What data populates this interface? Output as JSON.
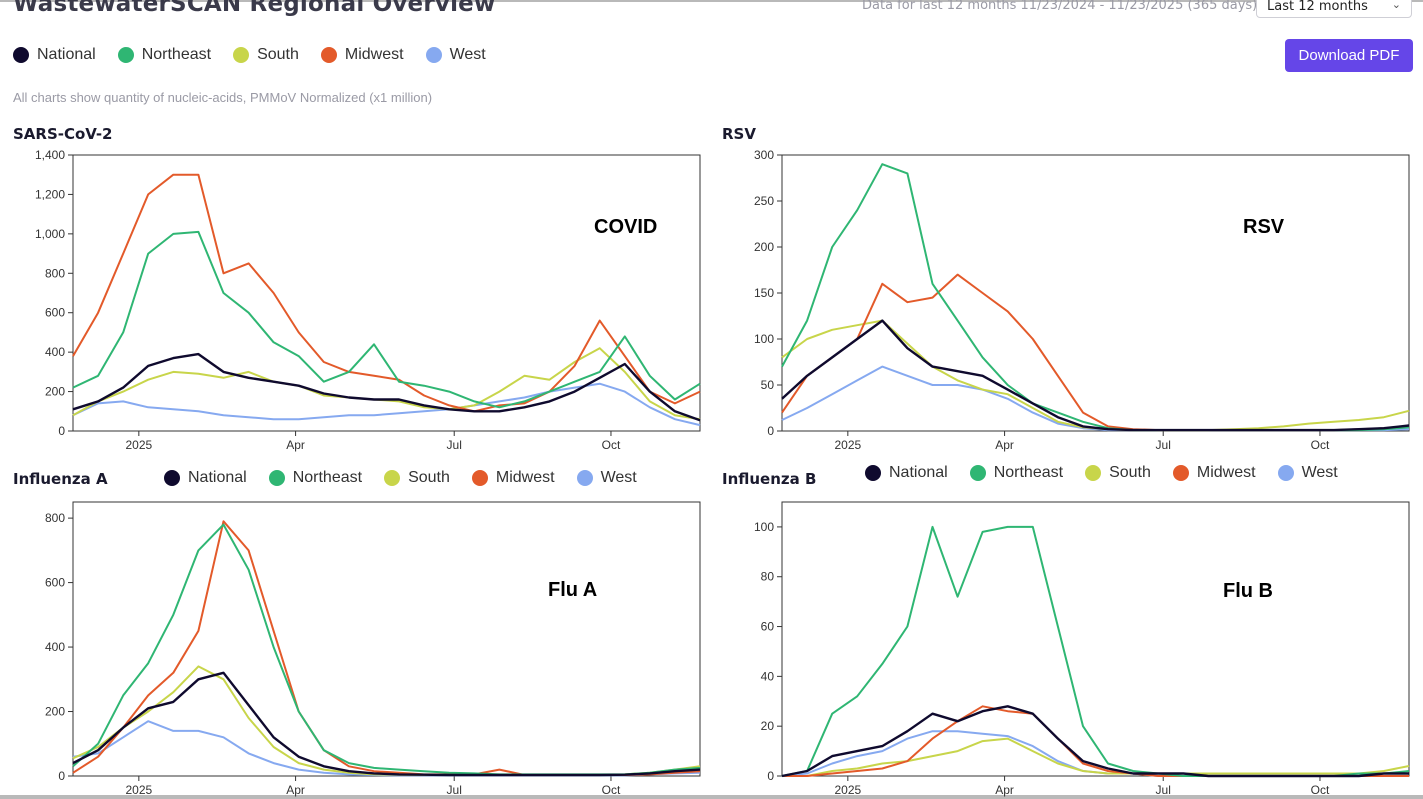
{
  "header": {
    "title": "WastewaterSCAN Regional Overview",
    "date_range": "Data for last 12 months 11/23/2024 - 11/23/2025 (365 days)",
    "range_select": "Last 12 months",
    "download_label": "Download PDF",
    "subtitle": "All charts show quantity of nucleic-acids, PMMoV Normalized (x1 million)"
  },
  "legend": [
    {
      "name": "National",
      "color": "#0f0a2e"
    },
    {
      "name": "Northeast",
      "color": "#2fb673"
    },
    {
      "name": "South",
      "color": "#c8d54a"
    },
    {
      "name": "Midwest",
      "color": "#e35a2a"
    },
    {
      "name": "West",
      "color": "#86a9f0"
    }
  ],
  "chart_data": [
    {
      "type": "line",
      "title": "SARS-CoV-2",
      "annotation": "COVID",
      "x_ticks": [
        "2025",
        "Apr",
        "Jul",
        "Oct"
      ],
      "ylim": [
        0,
        1400
      ],
      "y_ticks": [
        "0",
        "200",
        "400",
        "600",
        "800",
        "1,000",
        "1,200",
        "1,400"
      ],
      "x": [
        0,
        2,
        4,
        6,
        8,
        10,
        12,
        14,
        16,
        18,
        20,
        22,
        24,
        26,
        28,
        30,
        32,
        34,
        36,
        38,
        40,
        42,
        44,
        46,
        48,
        50
      ],
      "series": [
        {
          "name": "National",
          "values": [
            110,
            150,
            220,
            330,
            370,
            390,
            300,
            270,
            250,
            230,
            190,
            170,
            160,
            160,
            130,
            110,
            100,
            100,
            120,
            150,
            200,
            270,
            340,
            200,
            100,
            55
          ]
        },
        {
          "name": "Northeast",
          "values": [
            220,
            280,
            500,
            900,
            1000,
            1010,
            700,
            600,
            450,
            380,
            250,
            300,
            440,
            250,
            230,
            200,
            150,
            120,
            150,
            200,
            250,
            300,
            480,
            280,
            160,
            240
          ]
        },
        {
          "name": "South",
          "values": [
            80,
            150,
            200,
            260,
            300,
            290,
            270,
            300,
            250,
            230,
            180,
            170,
            160,
            150,
            120,
            110,
            130,
            200,
            280,
            260,
            350,
            420,
            300,
            150,
            80,
            60
          ]
        },
        {
          "name": "Midwest",
          "values": [
            380,
            600,
            900,
            1200,
            1300,
            1300,
            800,
            850,
            700,
            500,
            350,
            300,
            280,
            260,
            180,
            130,
            100,
            130,
            140,
            200,
            330,
            560,
            380,
            200,
            140,
            200
          ]
        },
        {
          "name": "West",
          "values": [
            80,
            140,
            150,
            120,
            110,
            100,
            80,
            70,
            60,
            60,
            70,
            80,
            80,
            90,
            100,
            110,
            130,
            150,
            170,
            200,
            220,
            240,
            200,
            120,
            60,
            30
          ]
        }
      ]
    },
    {
      "type": "line",
      "title": "RSV",
      "annotation": "RSV",
      "x_ticks": [
        "2025",
        "Apr",
        "Jul",
        "Oct"
      ],
      "ylim": [
        0,
        300
      ],
      "y_ticks": [
        "0",
        "50",
        "100",
        "150",
        "200",
        "250",
        "300"
      ],
      "x": [
        0,
        2,
        4,
        6,
        8,
        10,
        12,
        14,
        16,
        18,
        20,
        22,
        24,
        26,
        28,
        30,
        32,
        34,
        36,
        38,
        40,
        42,
        44,
        46,
        48,
        50
      ],
      "series": [
        {
          "name": "National",
          "values": [
            35,
            60,
            80,
            100,
            120,
            90,
            70,
            65,
            60,
            45,
            30,
            15,
            5,
            2,
            1,
            1,
            1,
            1,
            1,
            1,
            1,
            1,
            1,
            2,
            3,
            6
          ]
        },
        {
          "name": "Northeast",
          "values": [
            70,
            120,
            200,
            240,
            290,
            280,
            160,
            120,
            80,
            50,
            30,
            20,
            10,
            3,
            1,
            1,
            1,
            1,
            1,
            1,
            1,
            1,
            1,
            1,
            2,
            4
          ]
        },
        {
          "name": "South",
          "values": [
            80,
            100,
            110,
            115,
            120,
            95,
            70,
            55,
            45,
            40,
            25,
            10,
            4,
            2,
            1,
            1,
            1,
            1,
            2,
            3,
            5,
            8,
            10,
            12,
            15,
            22
          ]
        },
        {
          "name": "Midwest",
          "values": [
            20,
            60,
            80,
            100,
            160,
            140,
            145,
            170,
            150,
            130,
            100,
            60,
            20,
            5,
            2,
            1,
            1,
            1,
            1,
            1,
            1,
            1,
            1,
            2,
            3,
            5
          ]
        },
        {
          "name": "West",
          "values": [
            12,
            25,
            40,
            55,
            70,
            60,
            50,
            50,
            45,
            35,
            20,
            8,
            3,
            1,
            1,
            1,
            1,
            1,
            1,
            1,
            1,
            1,
            1,
            1,
            1,
            2
          ]
        }
      ]
    },
    {
      "type": "line",
      "title": "Influenza A",
      "annotation": "Flu A",
      "x_ticks": [
        "2025",
        "Apr",
        "Jul",
        "Oct"
      ],
      "ylim": [
        0,
        850
      ],
      "y_ticks": [
        "0",
        "200",
        "400",
        "600",
        "800"
      ],
      "x": [
        0,
        2,
        4,
        6,
        8,
        10,
        12,
        14,
        16,
        18,
        20,
        22,
        24,
        26,
        28,
        30,
        32,
        34,
        36,
        38,
        40,
        42,
        44,
        46,
        48,
        50
      ],
      "series": [
        {
          "name": "National",
          "values": [
            40,
            80,
            150,
            210,
            230,
            300,
            320,
            220,
            120,
            60,
            30,
            15,
            8,
            5,
            4,
            3,
            3,
            3,
            3,
            3,
            3,
            3,
            4,
            8,
            15,
            20
          ]
        },
        {
          "name": "Northeast",
          "values": [
            30,
            100,
            250,
            350,
            500,
            700,
            780,
            640,
            400,
            200,
            80,
            40,
            25,
            20,
            15,
            10,
            8,
            5,
            5,
            5,
            5,
            5,
            5,
            10,
            20,
            25
          ]
        },
        {
          "name": "South",
          "values": [
            55,
            90,
            150,
            200,
            260,
            340,
            300,
            180,
            90,
            40,
            20,
            10,
            5,
            4,
            3,
            3,
            3,
            3,
            3,
            3,
            3,
            3,
            5,
            10,
            20,
            30
          ]
        },
        {
          "name": "Midwest",
          "values": [
            10,
            60,
            150,
            250,
            320,
            450,
            790,
            700,
            450,
            200,
            80,
            30,
            15,
            10,
            5,
            5,
            5,
            20,
            3,
            3,
            3,
            3,
            3,
            5,
            10,
            15
          ]
        },
        {
          "name": "West",
          "values": [
            60,
            70,
            120,
            170,
            140,
            140,
            120,
            70,
            40,
            20,
            10,
            5,
            3,
            2,
            2,
            2,
            2,
            2,
            2,
            2,
            2,
            2,
            2,
            5,
            8,
            10
          ]
        }
      ]
    },
    {
      "type": "line",
      "title": "Influenza B",
      "annotation": "Flu B",
      "x_ticks": [
        "2025",
        "Apr",
        "Jul",
        "Oct"
      ],
      "ylim": [
        0,
        110
      ],
      "y_ticks": [
        "0",
        "20",
        "40",
        "60",
        "80",
        "100"
      ],
      "x": [
        0,
        2,
        4,
        6,
        8,
        10,
        12,
        14,
        16,
        18,
        20,
        22,
        24,
        26,
        28,
        30,
        32,
        34,
        36,
        38,
        40,
        42,
        44,
        46,
        48,
        50
      ],
      "series": [
        {
          "name": "National",
          "values": [
            0,
            2,
            8,
            10,
            12,
            18,
            25,
            22,
            26,
            28,
            25,
            15,
            6,
            3,
            1,
            1,
            1,
            0,
            0,
            0,
            0,
            0,
            0,
            0,
            1,
            1
          ]
        },
        {
          "name": "Northeast",
          "values": [
            0,
            2,
            25,
            32,
            45,
            60,
            100,
            72,
            98,
            100,
            100,
            60,
            20,
            5,
            2,
            1,
            0,
            0,
            0,
            0,
            0,
            0,
            0,
            1,
            1,
            2
          ]
        },
        {
          "name": "South",
          "values": [
            0,
            0,
            2,
            3,
            5,
            6,
            8,
            10,
            14,
            15,
            10,
            5,
            2,
            1,
            1,
            1,
            1,
            1,
            1,
            1,
            1,
            1,
            1,
            1,
            2,
            4
          ]
        },
        {
          "name": "Midwest",
          "values": [
            0,
            0,
            1,
            2,
            3,
            6,
            15,
            22,
            28,
            26,
            25,
            15,
            5,
            2,
            1,
            0,
            0,
            0,
            0,
            0,
            0,
            0,
            0,
            0,
            0,
            0
          ]
        },
        {
          "name": "West",
          "values": [
            0,
            1,
            5,
            8,
            10,
            15,
            18,
            18,
            17,
            16,
            12,
            6,
            2,
            1,
            1,
            0,
            0,
            0,
            0,
            0,
            0,
            0,
            0,
            0,
            0,
            0
          ]
        }
      ]
    }
  ]
}
